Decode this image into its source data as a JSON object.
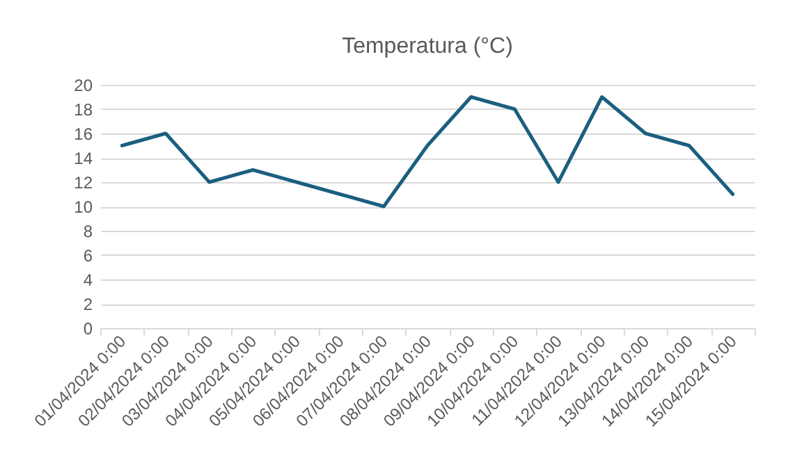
{
  "chart_data": {
    "type": "line",
    "title": "Temperatura (°C)",
    "categories": [
      "01/04/2024 0:00",
      "02/04/2024 0:00",
      "03/04/2024 0:00",
      "04/04/2024 0:00",
      "05/04/2024 0:00",
      "06/04/2024 0:00",
      "07/04/2024 0:00",
      "08/04/2024 0:00",
      "09/04/2024 0:00",
      "10/04/2024 0:00",
      "11/04/2024 0:00",
      "12/04/2024 0:00",
      "13/04/2024 0:00",
      "14/04/2024 0:00",
      "15/04/2024 0:00"
    ],
    "series": [
      {
        "color": "#1b5f80",
        "values": [
          15,
          16,
          12,
          13,
          12,
          11,
          10,
          15,
          19,
          18,
          12,
          19,
          16,
          15,
          11
        ]
      }
    ],
    "ylim": [
      0,
      20
    ],
    "yticks": [
      0,
      2,
      4,
      6,
      8,
      10,
      12,
      14,
      16,
      18,
      20
    ],
    "grid": "y",
    "marker": "none",
    "line_style": "solid"
  }
}
